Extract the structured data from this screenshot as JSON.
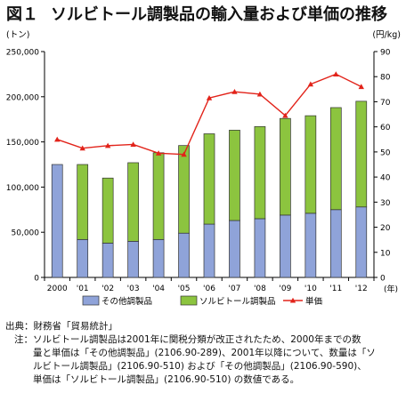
{
  "title": {
    "number": "図１",
    "text": "ソルビトール調製品の輸入量および単価の推移"
  },
  "chart_data": {
    "type": "bar",
    "stacked": true,
    "categories": [
      "2000",
      "'01",
      "'02",
      "'03",
      "'04",
      "'05",
      "'06",
      "'07",
      "'08",
      "'09",
      "'10",
      "'11",
      "'12"
    ],
    "y_left": {
      "unit": "(トン)",
      "range": [
        0,
        250000
      ],
      "ticks": [
        "0",
        "50,000",
        "100,000",
        "150,000",
        "200,000",
        "250,000"
      ],
      "tick_values": [
        0,
        50000,
        100000,
        150000,
        200000,
        250000
      ]
    },
    "y_right": {
      "unit": "(円/kg)",
      "range": [
        0,
        90
      ],
      "ticks": [
        "0",
        "10",
        "20",
        "30",
        "40",
        "50",
        "60",
        "70",
        "80",
        "90"
      ],
      "tick_values": [
        0,
        10,
        20,
        30,
        40,
        50,
        60,
        70,
        80,
        90
      ]
    },
    "x_unit": "(年)",
    "series": [
      {
        "name": "その他調製品",
        "kind": "bar",
        "axis": "left",
        "color": "#8fa3d9",
        "values": [
          125000,
          42000,
          38000,
          40000,
          42000,
          49000,
          59000,
          63000,
          65000,
          69000,
          71000,
          75000,
          78000
        ]
      },
      {
        "name": "ソルビトール調製品",
        "kind": "bar",
        "axis": "left",
        "color": "#8cc43f",
        "values": [
          0,
          83000,
          72000,
          87000,
          96000,
          97000,
          100000,
          100000,
          102000,
          107000,
          108000,
          113000,
          117000
        ]
      },
      {
        "name": "単価",
        "kind": "line",
        "axis": "right",
        "color": "#e2231a",
        "values": [
          55,
          51.5,
          52.5,
          53,
          49.5,
          49,
          71.5,
          74,
          73,
          64.5,
          77,
          81,
          76
        ]
      }
    ],
    "legend_position": "bottom",
    "grid": false
  },
  "notes": {
    "source_label": "出典：",
    "source_text": "財務省「貿易統計」",
    "note_label": "注：",
    "note_lines": [
      "ソルビトール調製品は2001年に関税分類が改正されたため、2000年までの数",
      "量と単価は「その他調製品」(2106.90-289)、2001年以降について、数量は「ソ",
      "ルビトール調製品」(2106.90-510) および「その他調製品」(2106.90-590)、",
      "単価は「ソルビトール調製品」(2106.90-510) の数値である。"
    ]
  }
}
